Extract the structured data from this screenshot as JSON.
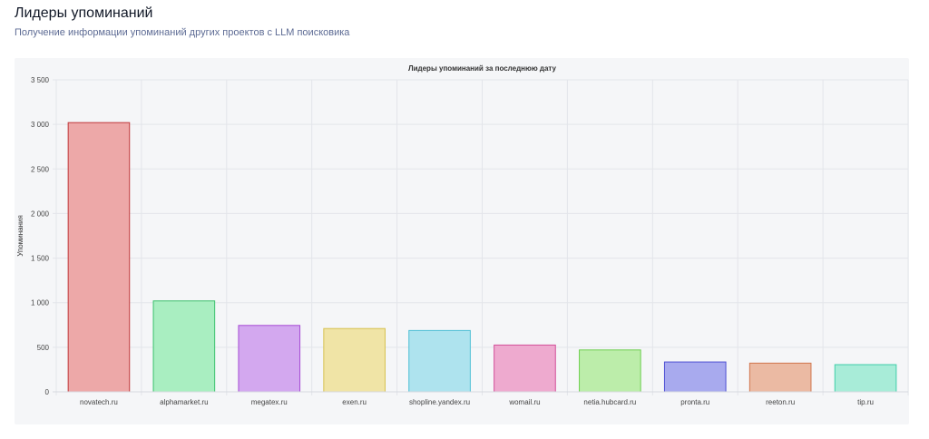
{
  "header": {
    "title": "Лидеры упоминаний",
    "subtitle": "Получение информации упоминаний других проектов с LLM поисковика"
  },
  "chart_data": {
    "type": "bar",
    "title": "Лидеры упоминаний за последнюю дату",
    "xlabel": "",
    "ylabel": "Упоминания",
    "ylim": [
      0,
      3500
    ],
    "yticks": [
      0,
      500,
      1000,
      1500,
      2000,
      2500,
      3000,
      3500
    ],
    "ytick_labels": [
      "0",
      "500",
      "1 000",
      "1 500",
      "2 000",
      "2 500",
      "3 000",
      "3 500"
    ],
    "grid": true,
    "categories": [
      "novatech.ru",
      "alphamarket.ru",
      "megatex.ru",
      "exen.ru",
      "shopline.yandex.ru",
      "womail.ru",
      "netia.hubcard.ru",
      "pronta.ru",
      "reeton.ru",
      "tip.ru"
    ],
    "values": [
      3020,
      1020,
      745,
      710,
      688,
      525,
      470,
      335,
      322,
      305
    ],
    "bar_fill_colors": [
      "#eda8a8",
      "#a9eec1",
      "#d3a8ef",
      "#f0e4a6",
      "#aee3ee",
      "#eeaacf",
      "#bcedaa",
      "#a8aaee",
      "#ebbaa3",
      "#a8ecd8"
    ],
    "bar_border_colors": [
      "#c0393b",
      "#3cc06d",
      "#a64cd4",
      "#d6c14f",
      "#4cbfd4",
      "#d24f99",
      "#6dcf4f",
      "#4d4fd2",
      "#d1764d",
      "#3fcfa9"
    ]
  }
}
